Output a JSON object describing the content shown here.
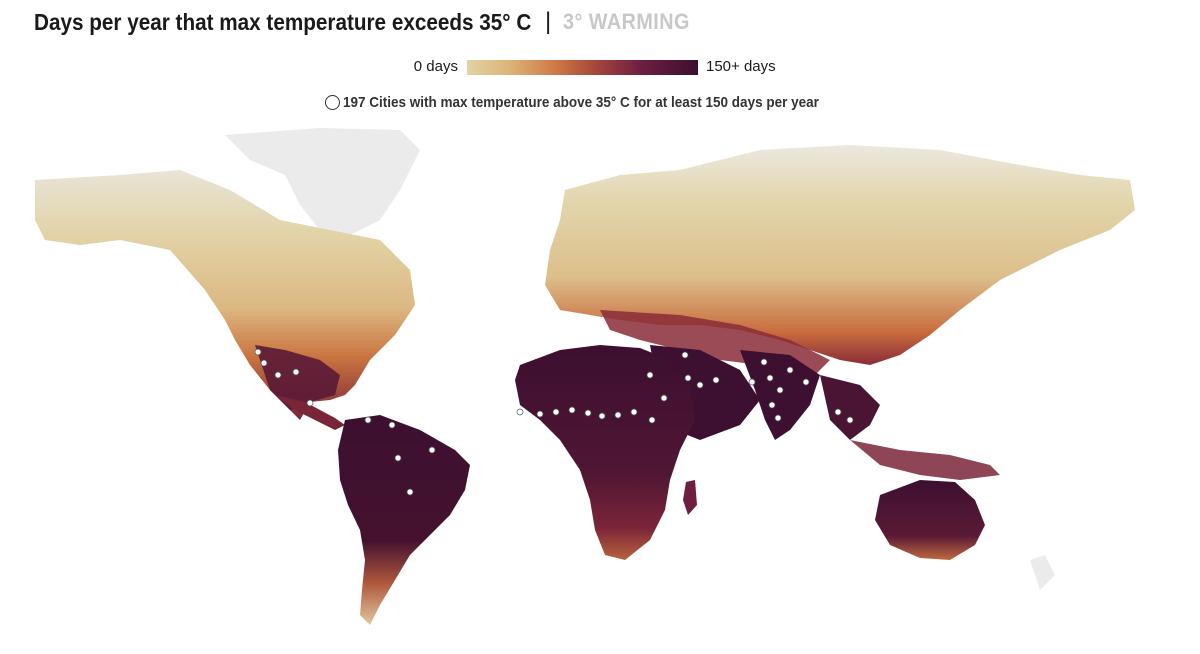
{
  "header": {
    "title": "Days per year that max temperature exceeds 35° C",
    "divider": "|",
    "scenario": "3° WARMING"
  },
  "legend": {
    "min_label": "0 days",
    "max_label": "150+ days",
    "ramp_colors": [
      "#e2d2a4",
      "#dcb57a",
      "#cf7a45",
      "#a8483a",
      "#6e1e40",
      "#3d0f30"
    ]
  },
  "cities_note": {
    "text": "197 Cities with max temperature above 35° C for at least 150 days per year",
    "icon": "circle-icon"
  },
  "map": {
    "land_color": "#e9e9e9",
    "city_dot_color": "#ffffff"
  }
}
